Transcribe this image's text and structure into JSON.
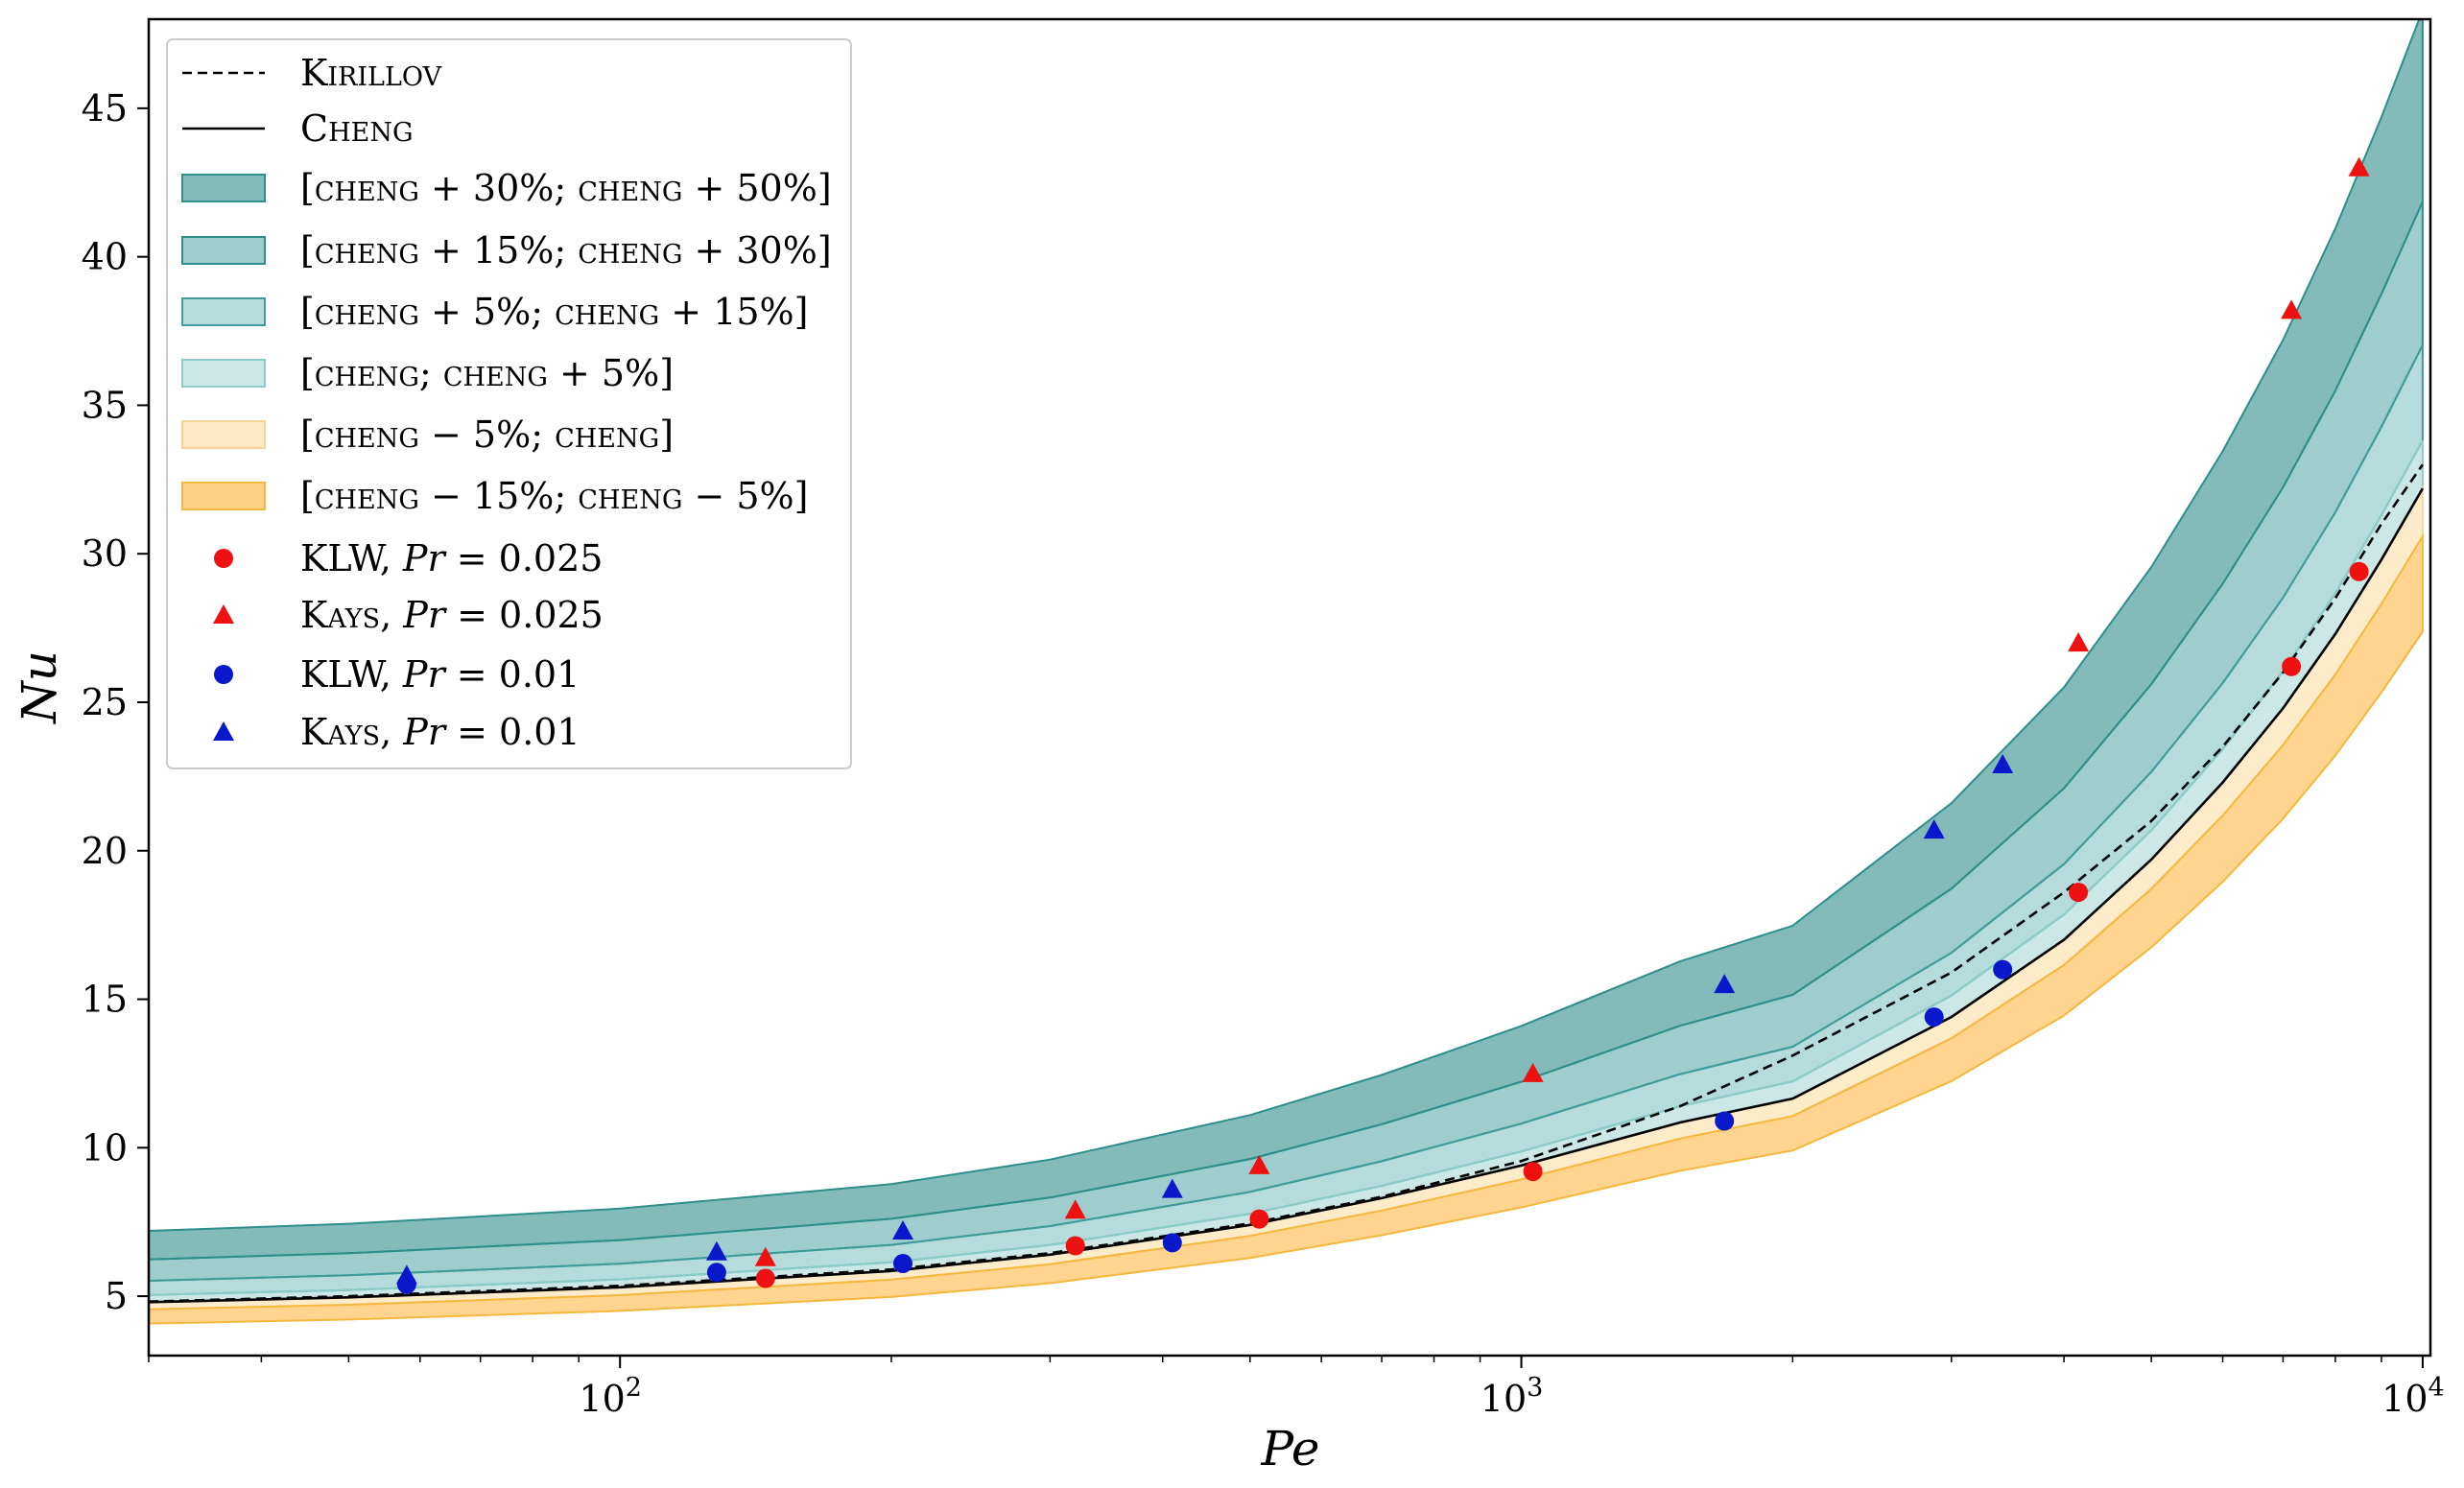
{
  "chart_data": {
    "type": "line",
    "xscale": "log",
    "xlim": [
      30,
      10200
    ],
    "ylim": [
      3,
      48
    ],
    "xlabel": "Pe",
    "ylabel": "Nu",
    "x_ticks": [
      {
        "value": 100,
        "base": "10",
        "exp": "2"
      },
      {
        "value": 1000,
        "base": "10",
        "exp": "3"
      },
      {
        "value": 10000,
        "base": "10",
        "exp": "4"
      }
    ],
    "y_ticks": [
      "5",
      "10",
      "15",
      "20",
      "25",
      "30",
      "35",
      "40",
      "45"
    ],
    "pe_grid": [
      30,
      50,
      100,
      200,
      300,
      500,
      700,
      1000,
      1500,
      2000,
      3000,
      4000,
      5000,
      6000,
      7000,
      8000,
      9000,
      10000
    ],
    "series": [
      {
        "name": "Kirillov",
        "kind": "line",
        "style": "dashed",
        "color": "#000000",
        "values": [
          4.82,
          5.0,
          5.35,
          5.9,
          6.45,
          7.45,
          8.35,
          9.55,
          11.4,
          13.1,
          15.9,
          18.6,
          21.0,
          23.5,
          26.0,
          28.5,
          31.0,
          33.0
        ]
      },
      {
        "name": "Cheng",
        "kind": "line",
        "style": "solid",
        "color": "#000000",
        "values": [
          4.8,
          4.96,
          5.3,
          5.85,
          6.4,
          7.4,
          8.3,
          9.4,
          10.85,
          11.65,
          14.4,
          17.0,
          19.7,
          22.3,
          24.8,
          27.3,
          29.8,
          32.2
        ]
      }
    ],
    "bands": [
      {
        "name": "[cheng + 30%; cheng + 50%]",
        "lo_factor": 1.3,
        "hi_factor": 1.5,
        "fill": "#2e8e8c",
        "opacity": 0.6,
        "edge": "#2e8e8c"
      },
      {
        "name": "[cheng + 15%; cheng + 30%]",
        "lo_factor": 1.15,
        "hi_factor": 1.3,
        "fill": "#3b9e9b",
        "opacity": 0.5,
        "edge": "#2e8e8c"
      },
      {
        "name": "[cheng + 5%; cheng + 15%]",
        "lo_factor": 1.05,
        "hi_factor": 1.15,
        "fill": "#5ab0ae",
        "opacity": 0.45,
        "edge": "#3f9c9a"
      },
      {
        "name": "[cheng; cheng + 5%]",
        "lo_factor": 1.0,
        "hi_factor": 1.05,
        "fill": "#8ccbc8",
        "opacity": 0.45,
        "edge": "#8ccbc8"
      },
      {
        "name": "[cheng − 5%; cheng]",
        "lo_factor": 0.95,
        "hi_factor": 1.0,
        "fill": "#fde2b4",
        "opacity": 0.7,
        "edge": "#f7d29a"
      },
      {
        "name": "[cheng − 15%; cheng − 5%]",
        "lo_factor": 0.85,
        "hi_factor": 0.95,
        "fill": "#fdc668",
        "opacity": 0.75,
        "edge": "#f5b83e"
      }
    ],
    "scatter": [
      {
        "name": "KLW, Pr = 0.025",
        "marker": "circle",
        "color": "#ee1111",
        "x": [
          145,
          320,
          512,
          1030,
          4150,
          7150,
          8500
        ],
        "y": [
          5.6,
          6.7,
          7.6,
          9.2,
          18.6,
          26.2,
          29.4
        ]
      },
      {
        "name": "Kays, Pr = 0.025",
        "marker": "triangle",
        "color": "#ee1111",
        "x": [
          145,
          320,
          512,
          1030,
          4150,
          7150,
          8500
        ],
        "y": [
          6.3,
          7.9,
          9.4,
          12.5,
          27.0,
          38.2,
          43.0
        ]
      },
      {
        "name": "KLW, Pr = 0.01",
        "marker": "circle",
        "color": "#0a18cc",
        "x": [
          58,
          128,
          206,
          410,
          1680,
          2870,
          3420
        ],
        "y": [
          5.4,
          5.8,
          6.1,
          6.8,
          10.9,
          14.4,
          16.0
        ]
      },
      {
        "name": "Kays, Pr = 0.01",
        "marker": "triangle",
        "color": "#0a18cc",
        "x": [
          58,
          128,
          206,
          410,
          1680,
          2870,
          3420
        ],
        "y": [
          5.7,
          6.5,
          7.2,
          8.6,
          15.5,
          20.7,
          22.9
        ]
      }
    ]
  },
  "legend": {
    "kirillov": "Kirillov",
    "cheng": "Cheng",
    "band1": "[cheng + 30%; cheng + 50%]",
    "band2": "[cheng + 15%; cheng + 30%]",
    "band3": "[cheng + 5%; cheng + 15%]",
    "band4": "[cheng; cheng + 5%]",
    "band5": "[cheng − 5%; cheng]",
    "band6": "[cheng − 15%; cheng − 5%]",
    "s1_name": "KLW, ",
    "s2_name": "Kays, ",
    "s3_name": "KLW, ",
    "s4_name": "Kays, ",
    "pr_symbol": "Pr",
    "s1_value": " = 0.025",
    "s2_value": " = 0.025",
    "s3_value": " = 0.01",
    "s4_value": " = 0.01"
  }
}
